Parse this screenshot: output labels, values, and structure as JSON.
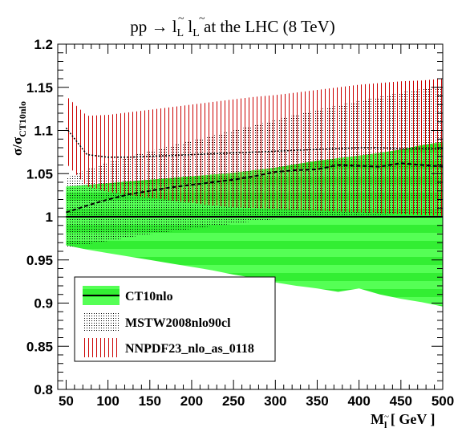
{
  "chart_data": {
    "type": "area",
    "title": "pp → l̃L l̃L at the LHC (8 TeV)",
    "xlabel": "M l̃ [ GeV ]",
    "ylabel": "σ/σ CT10nlo",
    "xlim": [
      40,
      500
    ],
    "ylim": [
      0.8,
      1.2
    ],
    "x_ticks": [
      50,
      100,
      150,
      200,
      250,
      300,
      350,
      400,
      450,
      500
    ],
    "y_ticks": [
      0.8,
      0.85,
      0.9,
      0.95,
      1,
      1.05,
      1.1,
      1.15,
      1.2
    ],
    "grid": false,
    "legend_position": "bottom-left",
    "x": [
      50,
      75,
      100,
      125,
      150,
      175,
      200,
      225,
      250,
      275,
      300,
      325,
      350,
      375,
      400,
      425,
      450,
      475,
      500
    ],
    "series": [
      {
        "name": "CT10nlo",
        "color": "#22cc22",
        "central": [
          1,
          1,
          1,
          1,
          1,
          1,
          1,
          1,
          1,
          1,
          1,
          1,
          1,
          1,
          1,
          1,
          1,
          1,
          1
        ],
        "upper": [
          1.035,
          1.037,
          1.039,
          1.041,
          1.043,
          1.045,
          1.047,
          1.049,
          1.051,
          1.054,
          1.057,
          1.061,
          1.065,
          1.068,
          1.071,
          1.074,
          1.078,
          1.083,
          1.087
        ],
        "lower": [
          0.967,
          0.962,
          0.958,
          0.954,
          0.95,
          0.946,
          0.942,
          0.938,
          0.933,
          0.929,
          0.924,
          0.92,
          0.917,
          0.913,
          0.917,
          0.91,
          0.905,
          0.901,
          0.896
        ]
      },
      {
        "name": "MSTW2008nlo90cl",
        "color": "#000000",
        "central": [
          1.005,
          1.013,
          1.02,
          1.026,
          1.03,
          1.034,
          1.037,
          1.04,
          1.043,
          1.047,
          1.052,
          1.054,
          1.055,
          1.06,
          1.059,
          1.058,
          1.062,
          1.06,
          1.058
        ],
        "upper": [
          1.045,
          1.055,
          1.063,
          1.07,
          1.076,
          1.082,
          1.088,
          1.094,
          1.1,
          1.106,
          1.112,
          1.118,
          1.124,
          1.129,
          1.134,
          1.139,
          1.144,
          1.148,
          1.153
        ],
        "lower": [
          0.965,
          0.968,
          0.972,
          0.976,
          0.98,
          0.983,
          0.986,
          0.989,
          0.992,
          0.995,
          0.997,
          0.999,
          1.0,
          1.001,
          1.002,
          1.002,
          1.003,
          1.003,
          1.003
        ]
      },
      {
        "name": "NNPDF23_nlo_as_0118",
        "color": "#cc0000",
        "central": [
          1.103,
          1.072,
          1.069,
          1.069,
          1.07,
          1.071,
          1.072,
          1.073,
          1.074,
          1.075,
          1.076,
          1.077,
          1.078,
          1.079,
          1.08,
          1.08,
          1.079,
          1.079,
          1.079
        ],
        "upper": [
          1.14,
          1.117,
          1.118,
          1.121,
          1.124,
          1.127,
          1.13,
          1.133,
          1.136,
          1.139,
          1.141,
          1.144,
          1.147,
          1.15,
          1.153,
          1.155,
          1.157,
          1.158,
          1.16
        ],
        "lower": [
          1.062,
          1.035,
          1.029,
          1.025,
          1.022,
          1.019,
          1.016,
          1.013,
          1.011,
          1.01,
          1.009,
          1.008,
          1.007,
          1.006,
          1.005,
          1.004,
          1.003,
          1.002,
          1.001
        ]
      }
    ]
  }
}
